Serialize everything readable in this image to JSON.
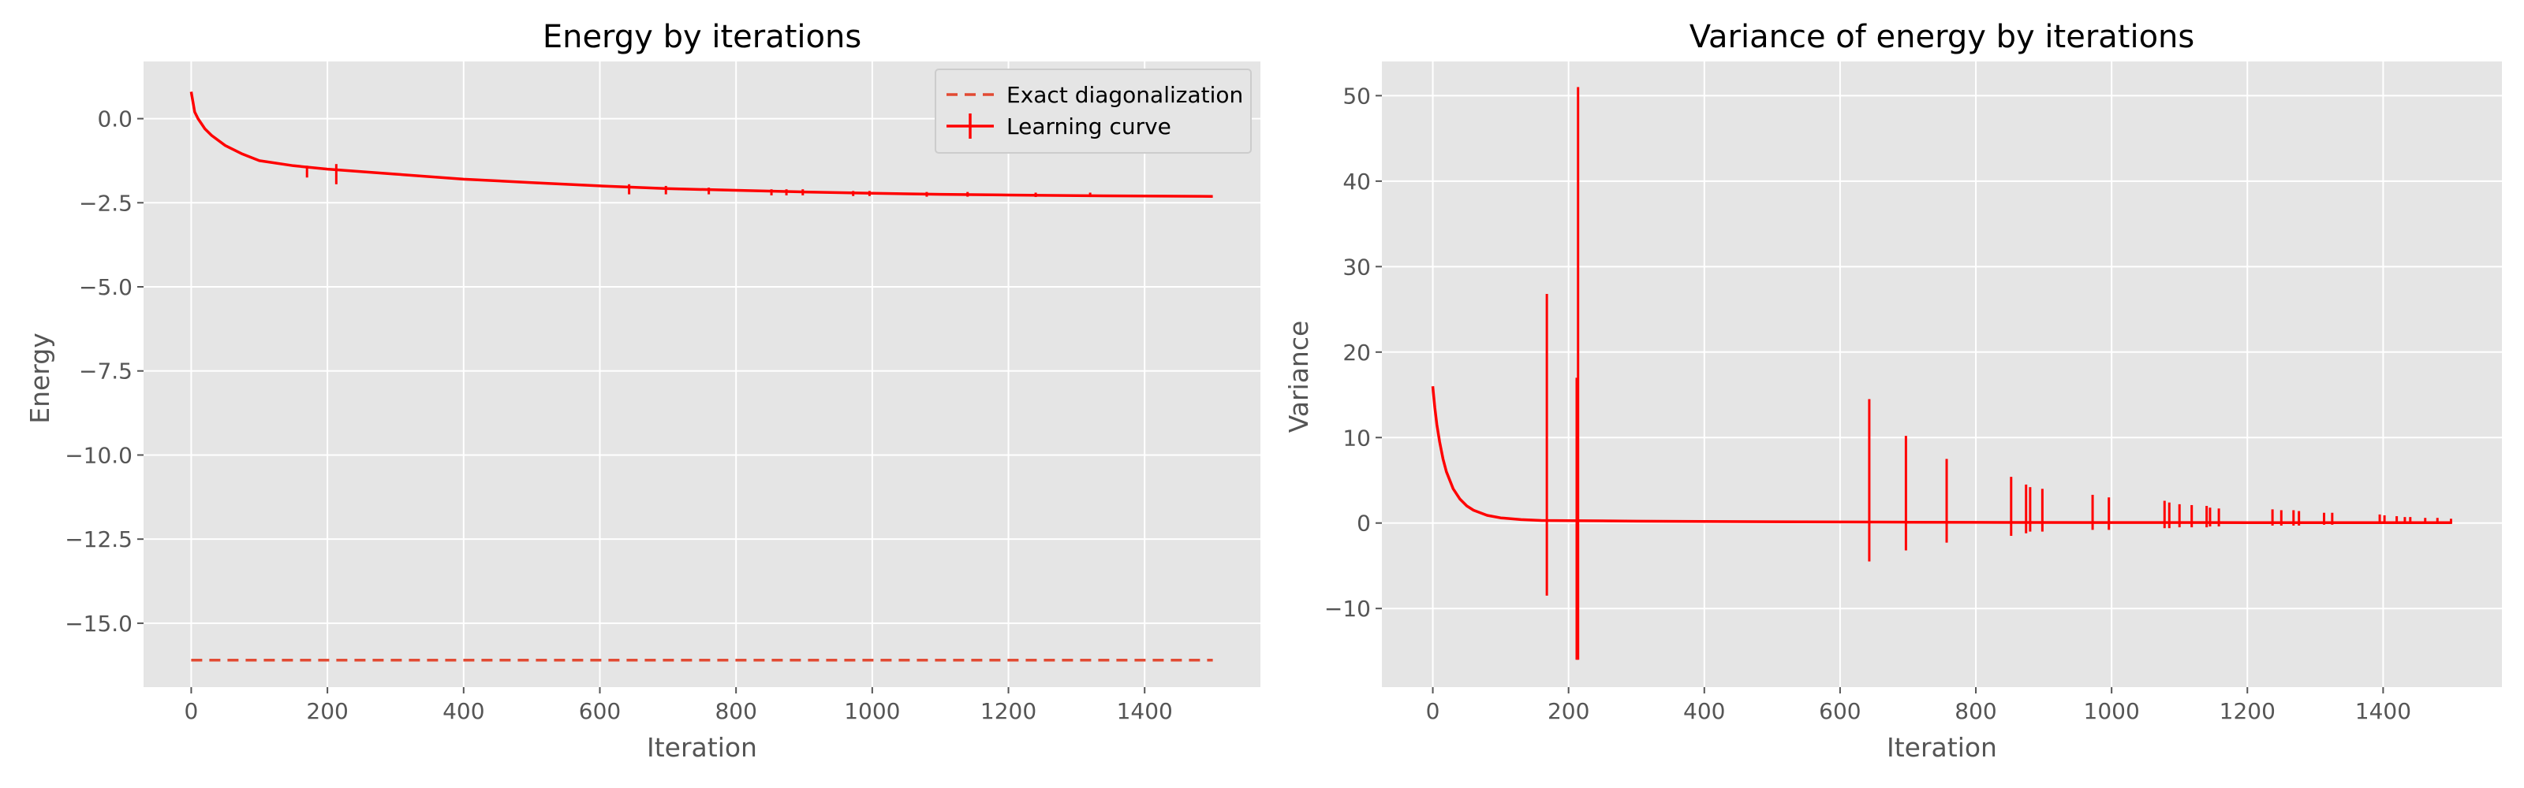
{
  "chart_data": [
    {
      "type": "line",
      "title": "Energy by iterations",
      "xlabel": "Iteration",
      "ylabel": "Energy",
      "xlim": [
        -70,
        1570
      ],
      "ylim": [
        -16.9,
        1.7
      ],
      "xticks": [
        0,
        200,
        400,
        600,
        800,
        1000,
        1200,
        1400
      ],
      "yticks": [
        0.0,
        -2.5,
        -5.0,
        -7.5,
        -10.0,
        -12.5,
        -15.0
      ],
      "ytick_labels": [
        "0.0",
        "−2.5",
        "−5.0",
        "−7.5",
        "−10.0",
        "−12.5",
        "−15.0"
      ],
      "grid": true,
      "legend_position": "top-right",
      "series": [
        {
          "name": "Exact diagonalization",
          "style": "dashed",
          "color": "#e24a33",
          "x": [
            0,
            1500
          ],
          "y": [
            -16.1,
            -16.1
          ]
        },
        {
          "name": "Learning curve",
          "style": "solid-with-errorbars",
          "color": "#ff0000",
          "x": [
            0,
            5,
            10,
            20,
            30,
            50,
            75,
            100,
            150,
            200,
            300,
            400,
            500,
            600,
            700,
            800,
            900,
            1000,
            1100,
            1200,
            1300,
            1400,
            1500
          ],
          "y": [
            0.8,
            0.2,
            0.0,
            -0.3,
            -0.5,
            -0.8,
            -1.05,
            -1.25,
            -1.4,
            -1.5,
            -1.65,
            -1.8,
            -1.9,
            -2.0,
            -2.08,
            -2.13,
            -2.18,
            -2.22,
            -2.25,
            -2.27,
            -2.29,
            -2.3,
            -2.31
          ],
          "error_spikes": [
            {
              "x": 170,
              "low": -1.75,
              "high": -1.4
            },
            {
              "x": 213,
              "low": -1.95,
              "high": -1.35
            },
            {
              "x": 643,
              "low": -2.25,
              "high": -1.95
            },
            {
              "x": 697,
              "low": -2.25,
              "high": -2.0
            },
            {
              "x": 760,
              "low": -2.25,
              "high": -2.05
            },
            {
              "x": 852,
              "low": -2.28,
              "high": -2.1
            },
            {
              "x": 874,
              "low": -2.28,
              "high": -2.1
            },
            {
              "x": 898,
              "low": -2.28,
              "high": -2.1
            },
            {
              "x": 972,
              "low": -2.3,
              "high": -2.15
            },
            {
              "x": 996,
              "low": -2.3,
              "high": -2.15
            },
            {
              "x": 1080,
              "low": -2.32,
              "high": -2.18
            },
            {
              "x": 1140,
              "low": -2.32,
              "high": -2.18
            },
            {
              "x": 1240,
              "low": -2.33,
              "high": -2.2
            },
            {
              "x": 1320,
              "low": -2.33,
              "high": -2.2
            }
          ]
        }
      ]
    },
    {
      "type": "line",
      "title": "Variance of energy by iterations",
      "xlabel": "Iteration",
      "ylabel": "Variance",
      "xlim": [
        -75,
        1575
      ],
      "ylim": [
        -19.2,
        54.0
      ],
      "xticks": [
        0,
        200,
        400,
        600,
        800,
        1000,
        1200,
        1400
      ],
      "yticks": [
        -10,
        0,
        10,
        20,
        30,
        40,
        50
      ],
      "ytick_labels": [
        "−10",
        "0",
        "10",
        "20",
        "30",
        "40",
        "50"
      ],
      "grid": true,
      "series": [
        {
          "style": "solid-with-errorbars",
          "color": "#ff0000",
          "x": [
            0,
            3,
            6,
            10,
            15,
            20,
            30,
            40,
            50,
            60,
            80,
            100,
            130,
            160,
            200,
            300,
            400,
            500,
            600,
            700,
            800,
            1000,
            1200,
            1400,
            1500
          ],
          "y": [
            16.0,
            13.5,
            11.5,
            9.5,
            7.5,
            6.0,
            4.0,
            2.8,
            2.0,
            1.5,
            0.9,
            0.6,
            0.4,
            0.3,
            0.28,
            0.22,
            0.18,
            0.15,
            0.12,
            0.1,
            0.08,
            0.06,
            0.05,
            0.04,
            0.04
          ],
          "error_spikes": [
            {
              "x": 168,
              "low": -8.5,
              "high": 26.8
            },
            {
              "x": 212,
              "low": -16.0,
              "high": 17.0
            },
            {
              "x": 214,
              "low": -16.0,
              "high": 51.0
            },
            {
              "x": 643,
              "low": -4.5,
              "high": 14.5
            },
            {
              "x": 697,
              "low": -3.2,
              "high": 10.2
            },
            {
              "x": 757,
              "low": -2.3,
              "high": 7.5
            },
            {
              "x": 852,
              "low": -1.5,
              "high": 5.4
            },
            {
              "x": 874,
              "low": -1.2,
              "high": 4.5
            },
            {
              "x": 880,
              "low": -1.0,
              "high": 4.2
            },
            {
              "x": 898,
              "low": -1.0,
              "high": 4.0
            },
            {
              "x": 972,
              "low": -0.8,
              "high": 3.3
            },
            {
              "x": 996,
              "low": -0.8,
              "high": 3.0
            },
            {
              "x": 1078,
              "low": -0.6,
              "high": 2.6
            },
            {
              "x": 1085,
              "low": -0.6,
              "high": 2.4
            },
            {
              "x": 1100,
              "low": -0.5,
              "high": 2.2
            },
            {
              "x": 1118,
              "low": -0.5,
              "high": 2.1
            },
            {
              "x": 1140,
              "low": -0.5,
              "high": 2.0
            },
            {
              "x": 1145,
              "low": -0.4,
              "high": 1.8
            },
            {
              "x": 1158,
              "low": -0.4,
              "high": 1.7
            },
            {
              "x": 1237,
              "low": -0.3,
              "high": 1.6
            },
            {
              "x": 1250,
              "low": -0.3,
              "high": 1.5
            },
            {
              "x": 1268,
              "low": -0.3,
              "high": 1.5
            },
            {
              "x": 1276,
              "low": -0.3,
              "high": 1.4
            },
            {
              "x": 1313,
              "low": -0.2,
              "high": 1.2
            },
            {
              "x": 1325,
              "low": -0.2,
              "high": 1.2
            },
            {
              "x": 1395,
              "low": -0.1,
              "high": 1.0
            },
            {
              "x": 1402,
              "low": -0.1,
              "high": 0.9
            },
            {
              "x": 1420,
              "low": -0.1,
              "high": 0.8
            },
            {
              "x": 1432,
              "low": -0.1,
              "high": 0.7
            },
            {
              "x": 1440,
              "low": -0.1,
              "high": 0.7
            },
            {
              "x": 1462,
              "low": -0.1,
              "high": 0.6
            },
            {
              "x": 1480,
              "low": -0.1,
              "high": 0.6
            },
            {
              "x": 1500,
              "low": -0.1,
              "high": 0.5
            }
          ]
        }
      ]
    }
  ]
}
